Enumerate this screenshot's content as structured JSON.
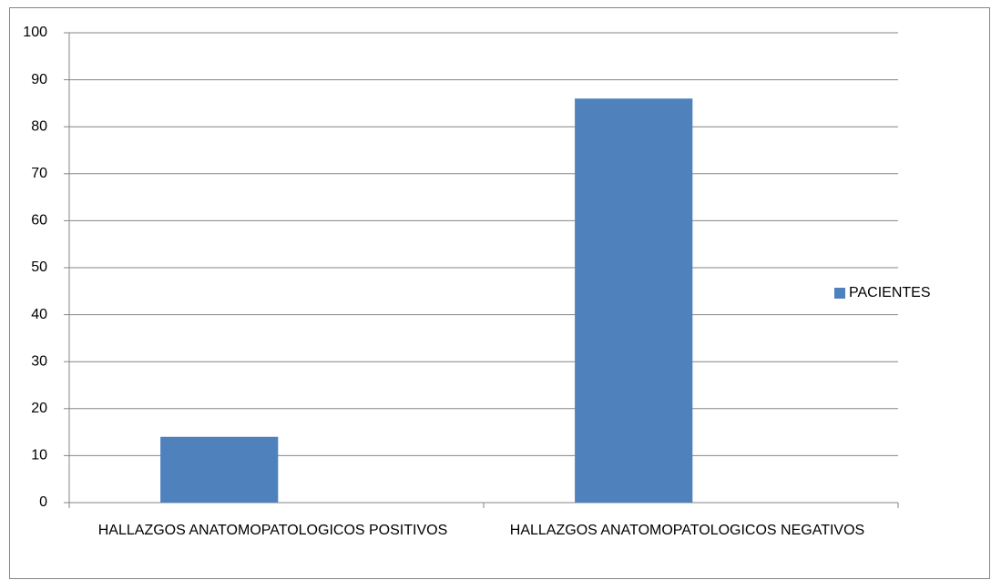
{
  "chart_data": {
    "type": "bar",
    "categories": [
      "HALLAZGOS ANATOMOPATOLOGICOS POSITIVOS",
      "HALLAZGOS ANATOMOPATOLOGICOS NEGATIVOS"
    ],
    "series": [
      {
        "name": "PACIENTES",
        "color": "#4f81bd",
        "values": [
          14,
          86
        ]
      }
    ],
    "ylim": [
      0,
      100
    ],
    "yticks": [
      0,
      10,
      20,
      30,
      40,
      50,
      60,
      70,
      80,
      90,
      100
    ],
    "grid": true,
    "legend": "right"
  }
}
